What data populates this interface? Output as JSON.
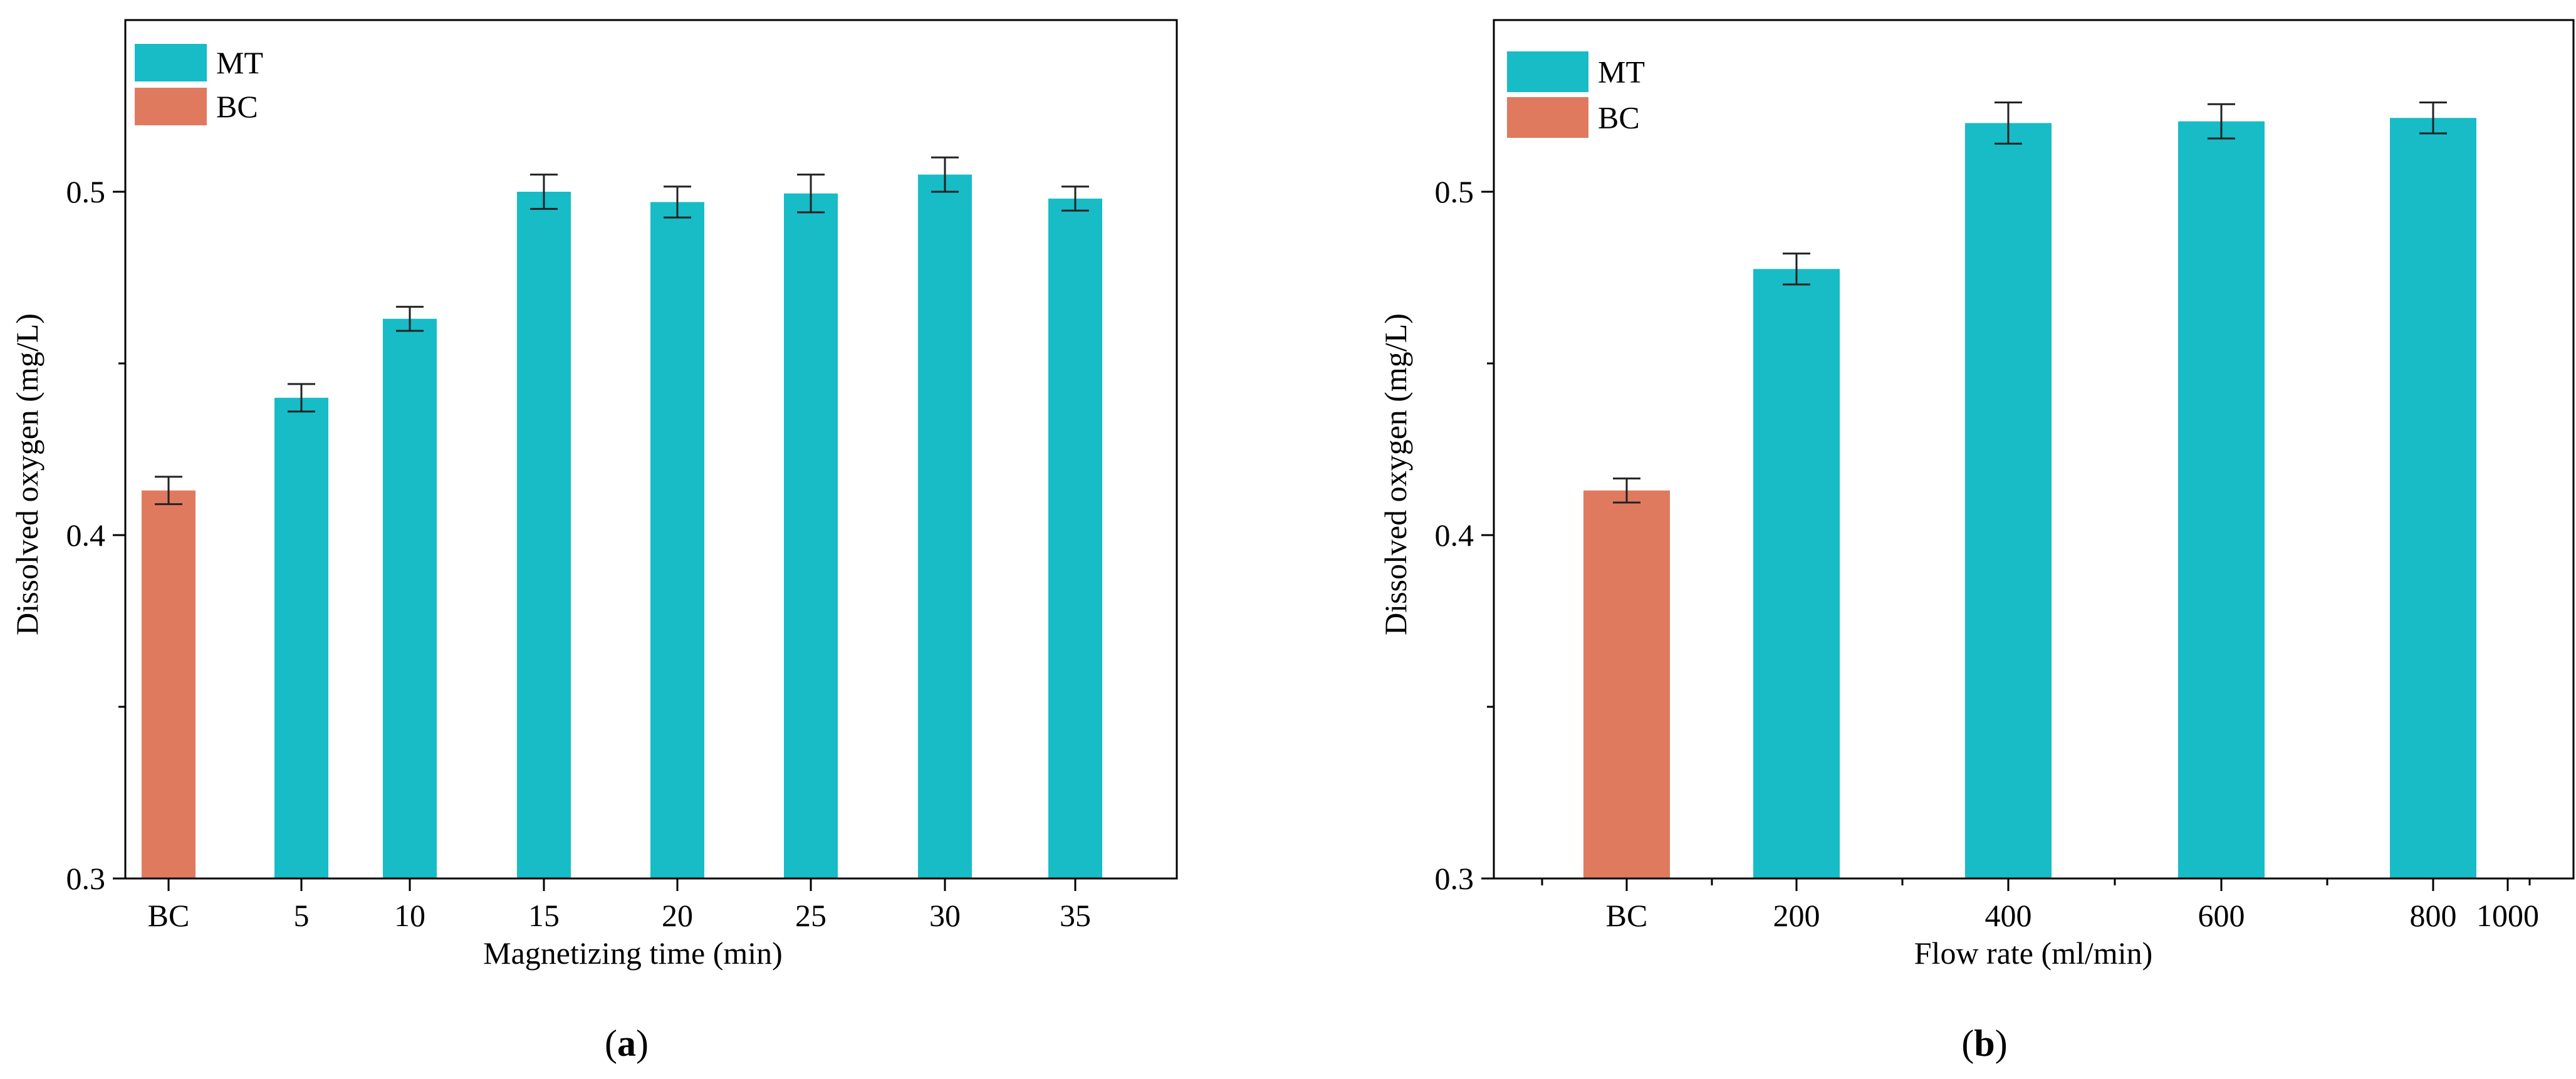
{
  "colors": {
    "mt": "#17BCC6",
    "bc": "#E07A5F",
    "axis": "#000000",
    "errorbar": "#222222"
  },
  "chart_data": [
    {
      "panel": "a",
      "panel_label": {
        "open": "(",
        "letter": "a",
        "close": ")"
      },
      "type": "bar",
      "title": "",
      "xlabel": "Magnetizing time (min)",
      "ylabel": "Dissolved oxygen (mg/L)",
      "ylim": [
        0.3,
        0.55
      ],
      "yticks_major": [
        0.3,
        0.4,
        0.5
      ],
      "ytick_labels": [
        "0.3",
        "0.4",
        "0.5"
      ],
      "yticks_minor": [
        0.35,
        0.45
      ],
      "categories": [
        "BC",
        "5",
        "10",
        "15",
        "20",
        "25",
        "30",
        "35"
      ],
      "bars": [
        {
          "category": "BC",
          "series": "BC",
          "value": 0.413,
          "error": 0.004
        },
        {
          "category": "5",
          "series": "MT",
          "value": 0.44,
          "error": 0.004
        },
        {
          "category": "10",
          "series": "MT",
          "value": 0.463,
          "error": 0.0035
        },
        {
          "category": "15",
          "series": "MT",
          "value": 0.5,
          "error": 0.005
        },
        {
          "category": "20",
          "series": "MT",
          "value": 0.497,
          "error": 0.0045
        },
        {
          "category": "25",
          "series": "MT",
          "value": 0.4995,
          "error": 0.0055
        },
        {
          "category": "30",
          "series": "MT",
          "value": 0.505,
          "error": 0.005
        },
        {
          "category": "35",
          "series": "MT",
          "value": 0.498,
          "error": 0.0035
        }
      ],
      "legend": [
        {
          "name": "MT",
          "color": "#17BCC6"
        },
        {
          "name": "BC",
          "color": "#E07A5F"
        }
      ],
      "legend_position": "top-left"
    },
    {
      "panel": "b",
      "panel_label": {
        "open": "(",
        "letter": "b",
        "close": ")"
      },
      "type": "bar",
      "title": "",
      "xlabel": "Flow rate (ml/min)",
      "ylabel": "Dissolved oxygen (mg/L)",
      "ylim": [
        0.3,
        0.55
      ],
      "yticks_major": [
        0.3,
        0.4,
        0.5
      ],
      "ytick_labels": [
        "0.3",
        "0.4",
        "0.5"
      ],
      "yticks_minor": [
        0.35,
        0.45
      ],
      "categories": [
        "BC",
        "200",
        "400",
        "600",
        "800",
        "1000"
      ],
      "bars": [
        {
          "category": "BC",
          "series": "BC",
          "value": 0.413,
          "error": 0.0035
        },
        {
          "category": "200",
          "series": "MT",
          "value": 0.4775,
          "error": 0.0045
        },
        {
          "category": "400",
          "series": "MT",
          "value": 0.52,
          "error": 0.006
        },
        {
          "category": "600",
          "series": "MT",
          "value": 0.5205,
          "error": 0.005
        },
        {
          "category": "800",
          "series": "MT",
          "value": 0.5215,
          "error": 0.0045
        }
      ],
      "legend": [
        {
          "name": "MT",
          "color": "#17BCC6"
        },
        {
          "name": "BC",
          "color": "#E07A5F"
        }
      ],
      "legend_position": "top-left"
    }
  ]
}
